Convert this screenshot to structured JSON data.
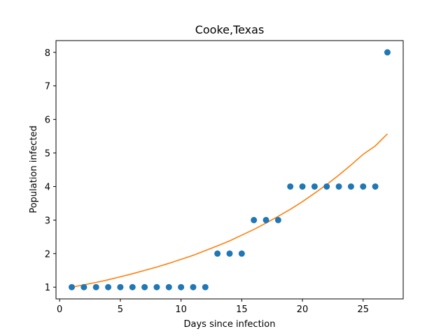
{
  "chart_data": {
    "type": "scatter",
    "title": "Cooke,Texas",
    "xlabel": "Days since infection",
    "ylabel": "Population infected",
    "xlim": [
      -0.3,
      28.3
    ],
    "ylim": [
      0.65,
      8.35
    ],
    "xticks": [
      0,
      5,
      10,
      15,
      20,
      25
    ],
    "yticks": [
      1,
      2,
      3,
      4,
      5,
      6,
      7,
      8
    ],
    "grid": false,
    "series": [
      {
        "kind": "scatter",
        "color": "#1f77b4",
        "x": [
          1,
          2,
          3,
          4,
          5,
          6,
          7,
          8,
          9,
          10,
          11,
          12,
          13,
          14,
          15,
          16,
          17,
          18,
          19,
          20,
          21,
          22,
          23,
          24,
          25,
          26,
          27
        ],
        "y": [
          1,
          1,
          1,
          1,
          1,
          1,
          1,
          1,
          1,
          1,
          1,
          1,
          2,
          2,
          2,
          3,
          3,
          3,
          4,
          4,
          4,
          4,
          4,
          4,
          4,
          4,
          8
        ]
      },
      {
        "kind": "line",
        "color": "#ff7f0e",
        "x": [
          1,
          2,
          3,
          4,
          5,
          6,
          7,
          8,
          9,
          10,
          11,
          12,
          13,
          14,
          15,
          16,
          17,
          18,
          19,
          20,
          21,
          22,
          23,
          24,
          25,
          26,
          27
        ],
        "y": [
          1.0,
          1.07,
          1.14,
          1.22,
          1.31,
          1.4,
          1.5,
          1.6,
          1.71,
          1.83,
          1.95,
          2.09,
          2.23,
          2.38,
          2.55,
          2.72,
          2.91,
          3.11,
          3.32,
          3.55,
          3.8,
          4.06,
          4.34,
          4.64,
          4.96,
          5.21,
          5.57
        ]
      }
    ]
  }
}
